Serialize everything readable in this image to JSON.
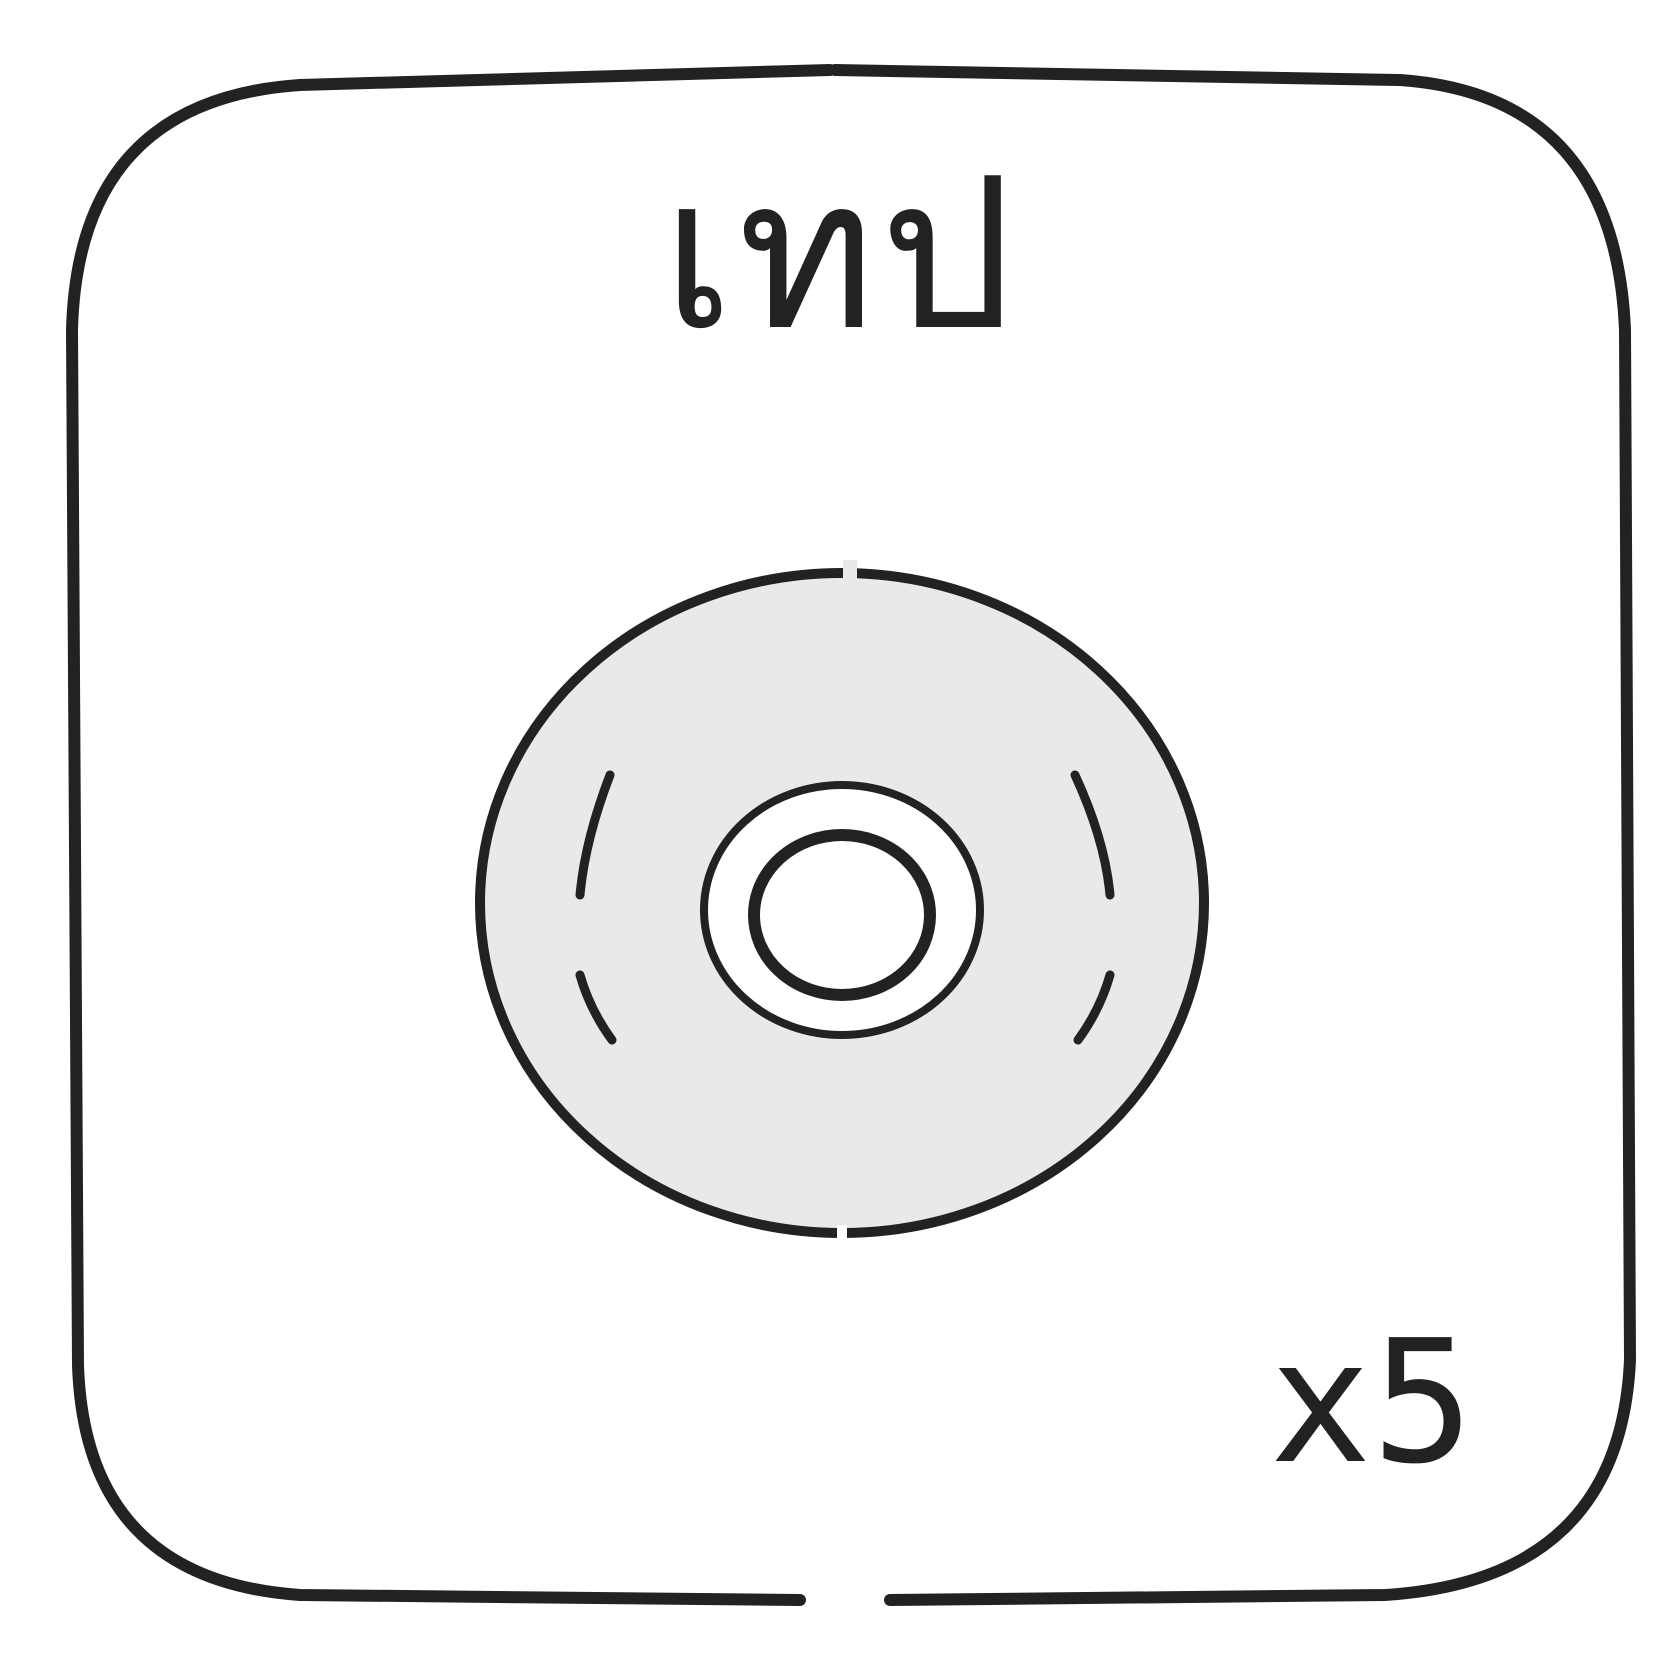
{
  "card": {
    "title": "เทป",
    "count": "x5",
    "icon": "tape-roll-icon"
  },
  "colors": {
    "outline": "#222222",
    "background": "#ffffff",
    "tape_fill": "#e9e9e9"
  }
}
